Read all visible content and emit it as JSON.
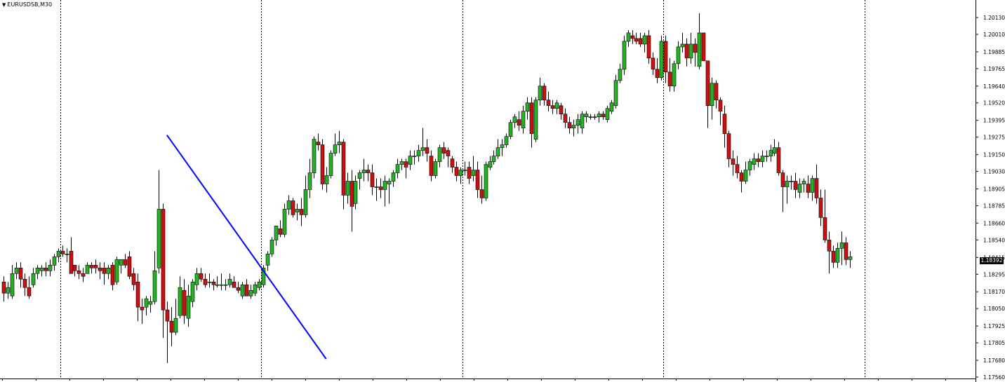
{
  "window": {
    "title": "EURUSDSB,M30",
    "menu_icon": "triangle-down-icon"
  },
  "colors": {
    "bull": "#22b422",
    "bear": "#cc0f0f",
    "wick": "#000000",
    "grid": "#000000",
    "trendline": "#0000ff",
    "background": "#ffffff",
    "price_box": "#000000"
  },
  "chart_data": {
    "type": "candlestick",
    "symbol": "EURUSDSB",
    "timeframe": "M30",
    "ylim": [
      1.1756,
      1.2019
    ],
    "y_ticks": [
      "1.20130",
      "1.20010",
      "1.19885",
      "1.19765",
      "1.19640",
      "1.19520",
      "1.19395",
      "1.19275",
      "1.19150",
      "1.19030",
      "1.18905",
      "1.18785",
      "1.18660",
      "1.18540",
      "1.18415",
      "1.18295",
      "1.18170",
      "1.18050",
      "1.17925",
      "1.17805",
      "1.17680",
      "1.17560"
    ],
    "current_price": "1.18392",
    "period_separators_after_bar": [
      13,
      61,
      109,
      157,
      205
    ],
    "candles": [
      [
        1.1824,
        1.1828,
        1.181,
        1.1816
      ],
      [
        1.1816,
        1.1824,
        1.1812,
        1.182
      ],
      [
        1.1814,
        1.1836,
        1.1812,
        1.183
      ],
      [
        1.183,
        1.1838,
        1.1826,
        1.1834
      ],
      [
        1.1834,
        1.1838,
        1.182,
        1.1826
      ],
      [
        1.1826,
        1.183,
        1.1814,
        1.182
      ],
      [
        1.182,
        1.1828,
        1.1812,
        1.1814
      ],
      [
        1.1822,
        1.1834,
        1.182,
        1.183
      ],
      [
        1.183,
        1.1836,
        1.1826,
        1.1834
      ],
      [
        1.1832,
        1.1836,
        1.1828,
        1.1834
      ],
      [
        1.1834,
        1.1838,
        1.1828,
        1.1832
      ],
      [
        1.1832,
        1.184,
        1.1828,
        1.1836
      ],
      [
        1.1836,
        1.1844,
        1.1832,
        1.1842
      ],
      [
        1.1842,
        1.1848,
        1.1838,
        1.1846
      ],
      [
        1.1846,
        1.185,
        1.1842,
        1.1844
      ],
      [
        1.1844,
        1.1848,
        1.1838,
        1.1844
      ],
      [
        1.1846,
        1.1856,
        1.1832,
        1.183
      ],
      [
        1.1836,
        1.1836,
        1.1828,
        1.1832
      ],
      [
        1.1832,
        1.1836,
        1.1826,
        1.183
      ],
      [
        1.183,
        1.1834,
        1.1824,
        1.1828
      ],
      [
        1.183,
        1.1838,
        1.183,
        1.1836
      ],
      [
        1.1836,
        1.1838,
        1.183,
        1.1834
      ],
      [
        1.1836,
        1.184,
        1.183,
        1.1834
      ],
      [
        1.1834,
        1.1838,
        1.1826,
        1.1832
      ],
      [
        1.1834,
        1.1838,
        1.1822,
        1.183
      ],
      [
        1.183,
        1.1836,
        1.1826,
        1.1834
      ],
      [
        1.1836,
        1.1838,
        1.1818,
        1.1822
      ],
      [
        1.1824,
        1.1842,
        1.1822,
        1.184
      ],
      [
        1.1836,
        1.184,
        1.183,
        1.184
      ],
      [
        1.184,
        1.1844,
        1.1834,
        1.1836
      ],
      [
        1.1842,
        1.1846,
        1.1826,
        1.1828
      ],
      [
        1.183,
        1.1834,
        1.1818,
        1.1822
      ],
      [
        1.1824,
        1.183,
        1.1796,
        1.1806
      ],
      [
        1.1806,
        1.1812,
        1.1794,
        1.1804
      ],
      [
        1.1806,
        1.1814,
        1.18,
        1.1812
      ],
      [
        1.1808,
        1.1814,
        1.1802,
        1.181
      ],
      [
        1.181,
        1.1846,
        1.1808,
        1.1832
      ],
      [
        1.1834,
        1.1904,
        1.183,
        1.1876
      ],
      [
        1.1876,
        1.188,
        1.1784,
        1.1804
      ],
      [
        1.1804,
        1.181,
        1.1766,
        1.1796
      ],
      [
        1.1796,
        1.1806,
        1.1778,
        1.1788
      ],
      [
        1.1788,
        1.1812,
        1.1786,
        1.1798
      ],
      [
        1.18,
        1.1828,
        1.1798,
        1.182
      ],
      [
        1.1818,
        1.1826,
        1.1794,
        1.18
      ],
      [
        1.1798,
        1.1822,
        1.1792,
        1.1814
      ],
      [
        1.181,
        1.1826,
        1.1806,
        1.1824
      ],
      [
        1.1822,
        1.1834,
        1.1818,
        1.183
      ],
      [
        1.183,
        1.1834,
        1.1824,
        1.1826
      ],
      [
        1.1826,
        1.183,
        1.182,
        1.1822
      ],
      [
        1.1824,
        1.183,
        1.182,
        1.1824
      ],
      [
        1.1824,
        1.1826,
        1.1818,
        1.1822
      ],
      [
        1.1822,
        1.1828,
        1.182,
        1.1822
      ],
      [
        1.1822,
        1.183,
        1.1818,
        1.1822
      ],
      [
        1.1822,
        1.1826,
        1.1818,
        1.1822
      ],
      [
        1.1822,
        1.183,
        1.182,
        1.1826
      ],
      [
        1.1824,
        1.1828,
        1.182,
        1.182
      ],
      [
        1.182,
        1.1824,
        1.1816,
        1.1818
      ],
      [
        1.1814,
        1.1824,
        1.1812,
        1.1822
      ],
      [
        1.1822,
        1.1826,
        1.1814,
        1.1814
      ],
      [
        1.1814,
        1.1822,
        1.1812,
        1.1818
      ],
      [
        1.1816,
        1.1824,
        1.1814,
        1.1822
      ],
      [
        1.182,
        1.1826,
        1.1818,
        1.1824
      ],
      [
        1.1822,
        1.1836,
        1.182,
        1.1834
      ],
      [
        1.1836,
        1.1846,
        1.1832,
        1.1844
      ],
      [
        1.1844,
        1.1856,
        1.1842,
        1.1854
      ],
      [
        1.1854,
        1.1864,
        1.185,
        1.1864
      ],
      [
        1.1862,
        1.1868,
        1.1856,
        1.1858
      ],
      [
        1.1858,
        1.188,
        1.1856,
        1.1876
      ],
      [
        1.1876,
        1.1886,
        1.1872,
        1.1882
      ],
      [
        1.1882,
        1.1884,
        1.187,
        1.1872
      ],
      [
        1.1874,
        1.188,
        1.1868,
        1.1876
      ],
      [
        1.1876,
        1.1884,
        1.1864,
        1.1872
      ],
      [
        1.1872,
        1.19,
        1.187,
        1.189
      ],
      [
        1.189,
        1.1912,
        1.1884,
        1.1902
      ],
      [
        1.1902,
        1.1928,
        1.1898,
        1.1926
      ],
      [
        1.1924,
        1.193,
        1.1918,
        1.1922
      ],
      [
        1.1922,
        1.1926,
        1.189,
        1.1894
      ],
      [
        1.1894,
        1.1906,
        1.1888,
        1.19
      ],
      [
        1.19,
        1.1918,
        1.1898,
        1.1916
      ],
      [
        1.1916,
        1.193,
        1.1914,
        1.1922
      ],
      [
        1.1922,
        1.1932,
        1.1916,
        1.1924
      ],
      [
        1.1924,
        1.1926,
        1.1876,
        1.1886
      ],
      [
        1.1886,
        1.1902,
        1.188,
        1.1896
      ],
      [
        1.1896,
        1.1904,
        1.186,
        1.1878
      ],
      [
        1.188,
        1.19,
        1.1876,
        1.1896
      ],
      [
        1.1898,
        1.1904,
        1.189,
        1.1902
      ],
      [
        1.1902,
        1.1912,
        1.1896,
        1.1904
      ],
      [
        1.1904,
        1.1908,
        1.1896,
        1.1902
      ],
      [
        1.1902,
        1.1908,
        1.1886,
        1.1892
      ],
      [
        1.1892,
        1.1898,
        1.1882,
        1.1892
      ],
      [
        1.1892,
        1.1898,
        1.1884,
        1.189
      ],
      [
        1.189,
        1.19,
        1.1878,
        1.1896
      ],
      [
        1.1894,
        1.1898,
        1.188,
        1.1896
      ],
      [
        1.1896,
        1.1904,
        1.1892,
        1.1902
      ],
      [
        1.1902,
        1.1912,
        1.1898,
        1.1908
      ],
      [
        1.1908,
        1.1912,
        1.1904,
        1.191
      ],
      [
        1.191,
        1.1912,
        1.1898,
        1.1906
      ],
      [
        1.1908,
        1.1918,
        1.1904,
        1.1914
      ],
      [
        1.1914,
        1.1918,
        1.1908,
        1.1914
      ],
      [
        1.1914,
        1.1922,
        1.191,
        1.1918
      ],
      [
        1.1918,
        1.1934,
        1.1914,
        1.192
      ],
      [
        1.192,
        1.1926,
        1.191,
        1.1916
      ],
      [
        1.1914,
        1.1918,
        1.1896,
        1.19
      ],
      [
        1.19,
        1.1912,
        1.1898,
        1.191
      ],
      [
        1.191,
        1.1922,
        1.1906,
        1.192
      ],
      [
        1.192,
        1.1924,
        1.1912,
        1.1916
      ],
      [
        1.1918,
        1.192,
        1.1906,
        1.1914
      ],
      [
        1.1912,
        1.1914,
        1.1902,
        1.1906
      ],
      [
        1.1906,
        1.191,
        1.1896,
        1.19
      ],
      [
        1.19,
        1.1906,
        1.1894,
        1.1904
      ],
      [
        1.1904,
        1.191,
        1.19,
        1.1904
      ],
      [
        1.1906,
        1.191,
        1.1894,
        1.1898
      ],
      [
        1.19,
        1.1914,
        1.1896,
        1.1904
      ],
      [
        1.1904,
        1.191,
        1.1884,
        1.189
      ],
      [
        1.189,
        1.19,
        1.188,
        1.1884
      ],
      [
        1.1884,
        1.191,
        1.1882,
        1.1908
      ],
      [
        1.1906,
        1.1914,
        1.1904,
        1.191
      ],
      [
        1.191,
        1.1918,
        1.1908,
        1.1914
      ],
      [
        1.1914,
        1.1926,
        1.1912,
        1.192
      ],
      [
        1.192,
        1.1926,
        1.1914,
        1.1922
      ],
      [
        1.1922,
        1.193,
        1.192,
        1.1928
      ],
      [
        1.1928,
        1.194,
        1.1926,
        1.1938
      ],
      [
        1.1938,
        1.1944,
        1.1934,
        1.1942
      ],
      [
        1.194,
        1.1946,
        1.1932,
        1.1936
      ],
      [
        1.1934,
        1.195,
        1.193,
        1.1946
      ],
      [
        1.1946,
        1.1956,
        1.194,
        1.1952
      ],
      [
        1.1952,
        1.1956,
        1.192,
        1.193
      ],
      [
        1.1926,
        1.1956,
        1.1924,
        1.1954
      ],
      [
        1.1954,
        1.197,
        1.195,
        1.1964
      ],
      [
        1.1964,
        1.1966,
        1.195,
        1.1954
      ],
      [
        1.1954,
        1.196,
        1.1946,
        1.195
      ],
      [
        1.195,
        1.1954,
        1.1944,
        1.1948
      ],
      [
        1.1948,
        1.1954,
        1.1944,
        1.1952
      ],
      [
        1.195,
        1.1952,
        1.194,
        1.1944
      ],
      [
        1.1944,
        1.1948,
        1.1934,
        1.1938
      ],
      [
        1.1938,
        1.1942,
        1.193,
        1.1934
      ],
      [
        1.1934,
        1.194,
        1.1928,
        1.1936
      ],
      [
        1.1936,
        1.1944,
        1.193,
        1.194
      ],
      [
        1.1934,
        1.1946,
        1.193,
        1.1944
      ],
      [
        1.1942,
        1.1946,
        1.1938,
        1.1944
      ],
      [
        1.1942,
        1.1944,
        1.194,
        1.1942
      ],
      [
        1.1942,
        1.1944,
        1.194,
        1.1942
      ],
      [
        1.1942,
        1.1946,
        1.1938,
        1.1944
      ],
      [
        1.1944,
        1.1946,
        1.194,
        1.1942
      ],
      [
        1.194,
        1.195,
        1.1938,
        1.1948
      ],
      [
        1.1946,
        1.1954,
        1.1944,
        1.1952
      ],
      [
        1.195,
        1.1972,
        1.1948,
        1.1968
      ],
      [
        1.1968,
        1.198,
        1.1966,
        1.1976
      ],
      [
        1.1976,
        1.2,
        1.1972,
        1.1996
      ],
      [
        1.1996,
        1.2004,
        1.1992,
        1.2002
      ],
      [
        1.2,
        1.2004,
        1.1994,
        1.1998
      ],
      [
        1.1998,
        1.2002,
        1.1994,
        1.1996
      ],
      [
        1.1998,
        1.2002,
        1.1992,
        1.1994
      ],
      [
        1.1994,
        1.2002,
        1.1988,
        1.2
      ],
      [
        1.2,
        1.2004,
        1.198,
        1.1984
      ],
      [
        1.1984,
        1.1988,
        1.1972,
        1.1976
      ],
      [
        1.1976,
        1.1984,
        1.1966,
        1.197
      ],
      [
        1.197,
        1.2,
        1.1968,
        1.1996
      ],
      [
        1.1996,
        1.2,
        1.1966,
        1.1974
      ],
      [
        1.1974,
        1.1984,
        1.196,
        1.1964
      ],
      [
        1.1964,
        1.1982,
        1.196,
        1.198
      ],
      [
        1.198,
        1.1996,
        1.1976,
        1.1992
      ],
      [
        1.1992,
        1.2002,
        1.1988,
        1.1994
      ],
      [
        1.1994,
        1.1998,
        1.1978,
        1.1984
      ],
      [
        1.1984,
        1.2002,
        1.198,
        1.1994
      ],
      [
        1.1994,
        1.1998,
        1.1978,
        1.1988
      ],
      [
        1.1978,
        1.2016,
        1.1976,
        1.2002
      ],
      [
        1.2002,
        1.2002,
        1.1982,
        1.1982
      ],
      [
        1.1982,
        1.1982,
        1.1934,
        1.195
      ],
      [
        1.195,
        1.197,
        1.194,
        1.1966
      ],
      [
        1.1966,
        1.1968,
        1.1948,
        1.1954
      ],
      [
        1.1954,
        1.1956,
        1.1936,
        1.1946
      ],
      [
        1.1944,
        1.195,
        1.192,
        1.193
      ],
      [
        1.193,
        1.1932,
        1.1906,
        1.1912
      ],
      [
        1.1912,
        1.1918,
        1.19,
        1.1908
      ],
      [
        1.1908,
        1.1914,
        1.1898,
        1.1902
      ],
      [
        1.1902,
        1.1904,
        1.1888,
        1.1896
      ],
      [
        1.1896,
        1.191,
        1.1894,
        1.1904
      ],
      [
        1.1904,
        1.1912,
        1.19,
        1.191
      ],
      [
        1.1908,
        1.1916,
        1.1904,
        1.1912
      ],
      [
        1.1912,
        1.1916,
        1.1906,
        1.191
      ],
      [
        1.191,
        1.1918,
        1.1906,
        1.1914
      ],
      [
        1.1914,
        1.1918,
        1.191,
        1.1914
      ],
      [
        1.1914,
        1.1922,
        1.191,
        1.1918
      ],
      [
        1.1916,
        1.1926,
        1.1914,
        1.192
      ],
      [
        1.192,
        1.1924,
        1.19,
        1.1902
      ],
      [
        1.1902,
        1.1904,
        1.1874,
        1.1892
      ],
      [
        1.1892,
        1.19,
        1.188,
        1.1896
      ],
      [
        1.1896,
        1.19,
        1.189,
        1.1896
      ],
      [
        1.1896,
        1.1902,
        1.1884,
        1.189
      ],
      [
        1.1888,
        1.1898,
        1.1884,
        1.1894
      ],
      [
        1.1894,
        1.1898,
        1.1888,
        1.1896
      ],
      [
        1.1894,
        1.19,
        1.1884,
        1.1888
      ],
      [
        1.1888,
        1.19,
        1.1882,
        1.1898
      ],
      [
        1.1898,
        1.1908,
        1.188,
        1.1884
      ],
      [
        1.1884,
        1.189,
        1.1864,
        1.187
      ],
      [
        1.187,
        1.189,
        1.1852,
        1.1854
      ],
      [
        1.1854,
        1.186,
        1.183,
        1.1846
      ],
      [
        1.1846,
        1.185,
        1.1834,
        1.1838
      ],
      [
        1.1838,
        1.1852,
        1.1834,
        1.1848
      ],
      [
        1.1848,
        1.186,
        1.1836,
        1.1852
      ],
      [
        1.1852,
        1.1856,
        1.1836,
        1.184
      ],
      [
        1.184,
        1.1846,
        1.1834,
        1.1842
      ]
    ],
    "trendline": {
      "x1_bar": 39,
      "y1": 1.1929,
      "x2_bar": 77,
      "y2": 1.1769
    }
  }
}
